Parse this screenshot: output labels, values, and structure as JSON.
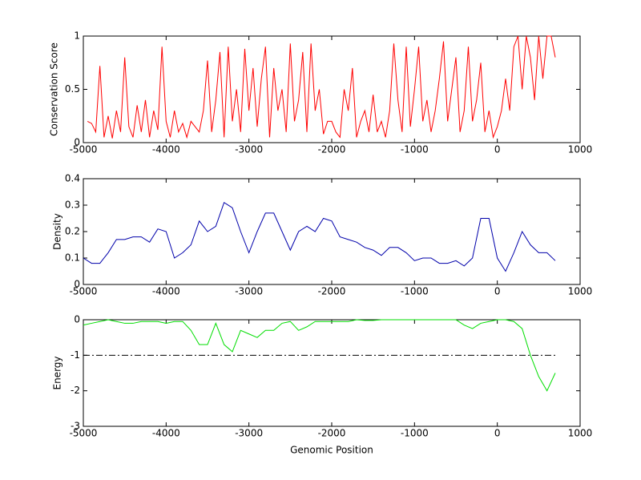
{
  "chart_data": [
    {
      "type": "line",
      "ylabel": "Conservation Score",
      "color": "#ff0000",
      "x": [
        -4950,
        -4900,
        -4850,
        -4800,
        -4750,
        -4700,
        -4650,
        -4600,
        -4550,
        -4500,
        -4450,
        -4400,
        -4350,
        -4300,
        -4250,
        -4200,
        -4150,
        -4100,
        -4050,
        -4000,
        -3950,
        -3900,
        -3850,
        -3800,
        -3750,
        -3700,
        -3650,
        -3600,
        -3550,
        -3500,
        -3450,
        -3400,
        -3350,
        -3300,
        -3250,
        -3200,
        -3150,
        -3100,
        -3050,
        -3000,
        -2950,
        -2900,
        -2850,
        -2800,
        -2750,
        -2700,
        -2650,
        -2600,
        -2550,
        -2500,
        -2450,
        -2400,
        -2350,
        -2300,
        -2250,
        -2200,
        -2150,
        -2100,
        -2050,
        -2000,
        -1950,
        -1900,
        -1850,
        -1800,
        -1750,
        -1700,
        -1650,
        -1600,
        -1550,
        -1500,
        -1450,
        -1400,
        -1350,
        -1300,
        -1250,
        -1200,
        -1150,
        -1100,
        -1050,
        -1000,
        -950,
        -900,
        -850,
        -800,
        -750,
        -700,
        -650,
        -600,
        -550,
        -500,
        -450,
        -400,
        -350,
        -300,
        -250,
        -200,
        -150,
        -100,
        -50,
        0,
        50,
        100,
        150,
        200,
        250,
        300,
        350,
        400,
        450,
        500,
        550,
        600,
        650,
        700
      ],
      "values": [
        0.2,
        0.18,
        0.1,
        0.72,
        0.05,
        0.25,
        0.04,
        0.3,
        0.1,
        0.8,
        0.15,
        0.05,
        0.35,
        0.1,
        0.4,
        0.05,
        0.3,
        0.12,
        0.9,
        0.2,
        0.05,
        0.3,
        0.1,
        0.18,
        0.05,
        0.2,
        0.15,
        0.1,
        0.3,
        0.77,
        0.1,
        0.4,
        0.85,
        0.05,
        0.9,
        0.2,
        0.5,
        0.1,
        0.88,
        0.3,
        0.7,
        0.15,
        0.6,
        0.9,
        0.05,
        0.7,
        0.3,
        0.5,
        0.1,
        0.93,
        0.2,
        0.4,
        0.85,
        0.1,
        0.93,
        0.3,
        0.5,
        0.08,
        0.2,
        0.2,
        0.1,
        0.05,
        0.5,
        0.3,
        0.7,
        0.05,
        0.2,
        0.3,
        0.1,
        0.45,
        0.1,
        0.2,
        0.05,
        0.3,
        0.93,
        0.4,
        0.1,
        0.9,
        0.15,
        0.5,
        0.9,
        0.2,
        0.4,
        0.1,
        0.3,
        0.6,
        0.95,
        0.2,
        0.5,
        0.8,
        0.1,
        0.3,
        0.9,
        0.2,
        0.4,
        0.75,
        0.1,
        0.3,
        0.05,
        0.15,
        0.3,
        0.6,
        0.3,
        0.9,
        1,
        0.5,
        1,
        0.8,
        0.4,
        1,
        0.6,
        1,
        1,
        0.8
      ],
      "xlim": [
        -5000,
        1000
      ],
      "xticks": [
        -5000,
        -4000,
        -3000,
        -2000,
        -1000,
        0,
        1000
      ],
      "ylim": [
        0,
        1
      ],
      "yticks": [
        0,
        0.5,
        1
      ]
    },
    {
      "type": "line",
      "ylabel": "Density",
      "color": "#0000aa",
      "x": [
        -5000,
        -4900,
        -4800,
        -4700,
        -4600,
        -4500,
        -4400,
        -4300,
        -4200,
        -4100,
        -4000,
        -3900,
        -3800,
        -3700,
        -3600,
        -3500,
        -3400,
        -3300,
        -3200,
        -3100,
        -3000,
        -2900,
        -2800,
        -2700,
        -2600,
        -2500,
        -2400,
        -2300,
        -2200,
        -2100,
        -2000,
        -1900,
        -1800,
        -1700,
        -1600,
        -1500,
        -1400,
        -1300,
        -1200,
        -1100,
        -1000,
        -900,
        -800,
        -700,
        -600,
        -500,
        -400,
        -300,
        -200,
        -100,
        0,
        100,
        200,
        300,
        400,
        500,
        600,
        700
      ],
      "values": [
        0.1,
        0.08,
        0.08,
        0.12,
        0.17,
        0.17,
        0.18,
        0.18,
        0.16,
        0.21,
        0.2,
        0.1,
        0.12,
        0.15,
        0.24,
        0.2,
        0.22,
        0.31,
        0.29,
        0.2,
        0.12,
        0.2,
        0.27,
        0.27,
        0.2,
        0.13,
        0.2,
        0.22,
        0.2,
        0.25,
        0.24,
        0.18,
        0.17,
        0.16,
        0.14,
        0.13,
        0.11,
        0.14,
        0.14,
        0.12,
        0.09,
        0.1,
        0.1,
        0.08,
        0.08,
        0.09,
        0.07,
        0.1,
        0.25,
        0.25,
        0.1,
        0.05,
        0.12,
        0.2,
        0.15,
        0.12,
        0.12,
        0.09
      ],
      "xlim": [
        -5000,
        1000
      ],
      "xticks": [
        -5000,
        -4000,
        -3000,
        -2000,
        -1000,
        0,
        1000
      ],
      "ylim": [
        0,
        0.4
      ],
      "yticks": [
        0,
        0.1,
        0.2,
        0.3,
        0.4
      ]
    },
    {
      "type": "line",
      "ylabel": "Energy",
      "xlabel": "Genomic Position",
      "color": "#00dd00",
      "x": [
        -5000,
        -4900,
        -4800,
        -4700,
        -4600,
        -4500,
        -4400,
        -4300,
        -4200,
        -4100,
        -4000,
        -3900,
        -3800,
        -3700,
        -3600,
        -3500,
        -3400,
        -3300,
        -3200,
        -3100,
        -3000,
        -2900,
        -2800,
        -2700,
        -2600,
        -2500,
        -2400,
        -2300,
        -2200,
        -2100,
        -2000,
        -1900,
        -1800,
        -1700,
        -1600,
        -1500,
        -1400,
        -1300,
        -1200,
        -1100,
        -1000,
        -900,
        -800,
        -700,
        -600,
        -500,
        -400,
        -300,
        -200,
        -100,
        0,
        100,
        200,
        300,
        400,
        500,
        600,
        700
      ],
      "values": [
        -0.15,
        -0.1,
        -0.05,
        0,
        -0.05,
        -0.1,
        -0.1,
        -0.05,
        -0.05,
        -0.05,
        -0.1,
        -0.05,
        -0.05,
        -0.3,
        -0.7,
        -0.7,
        -0.1,
        -0.7,
        -0.9,
        -0.3,
        -0.4,
        -0.5,
        -0.3,
        -0.3,
        -0.1,
        -0.05,
        -0.3,
        -0.2,
        -0.05,
        -0.05,
        -0.05,
        -0.05,
        -0.05,
        0,
        -0.02,
        -0.02,
        0,
        0,
        0,
        0,
        0,
        0,
        0,
        0,
        0,
        0,
        -0.15,
        -0.25,
        -0.1,
        -0.05,
        0,
        0,
        -0.05,
        -0.25,
        -1.0,
        -1.6,
        -2.0,
        -1.5
      ],
      "threshold": -1,
      "xlim": [
        -5000,
        1000
      ],
      "xticks": [
        -5000,
        -4000,
        -3000,
        -2000,
        -1000,
        0,
        1000
      ],
      "ylim": [
        -3,
        0
      ],
      "yticks": [
        -3,
        -2,
        -1,
        0
      ]
    }
  ]
}
